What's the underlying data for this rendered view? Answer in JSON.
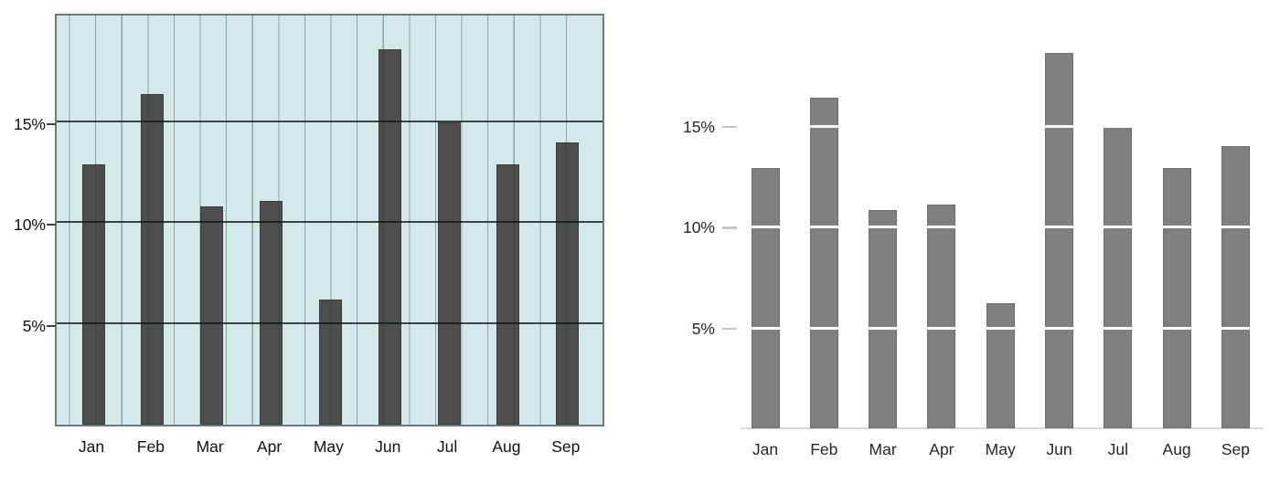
{
  "figure": {
    "background": "#ffffff",
    "description": "Side-by-side comparison of the same monthly percentage bar chart: left panel heavily gridded on tinted background, right panel minimal with white gridline gaps"
  },
  "chart_data": [
    {
      "id": "decorated",
      "panel": "left",
      "type": "bar",
      "title": "",
      "xlabel": "",
      "ylabel": "",
      "categories": [
        "Jan",
        "Feb",
        "Mar",
        "Apr",
        "May",
        "Jun",
        "Jul",
        "Aug",
        "Sep"
      ],
      "values": [
        12.9,
        16.4,
        10.8,
        11.1,
        6.2,
        18.6,
        15.0,
        12.9,
        14.0
      ],
      "value_unit": "%",
      "ylim": [
        0,
        20.4
      ],
      "y_ticks": [
        {
          "value": 5,
          "label": "5%"
        },
        {
          "value": 10,
          "label": "10%"
        },
        {
          "value": 15,
          "label": "15%"
        }
      ],
      "legend": "none",
      "grid": {
        "horizontal": true,
        "vertical": true,
        "drawn_over_bars": true
      },
      "colors": {
        "plot_background": "#d3e8e9",
        "bar": "#4e4e4e",
        "bar_outline": "#3b3b3b",
        "plot_border": "#6b7a7c",
        "horizontal_grid": "rgba(15,22,23,0.78)",
        "vertical_grid": "rgba(25,55,60,0.38)",
        "axis_tick": "#3c4446",
        "label_text": "#111111"
      }
    },
    {
      "id": "minimal",
      "panel": "right",
      "type": "bar",
      "title": "",
      "xlabel": "",
      "ylabel": "",
      "categories": [
        "Jan",
        "Feb",
        "Mar",
        "Apr",
        "May",
        "Jun",
        "Jul",
        "Aug",
        "Sep"
      ],
      "values": [
        12.9,
        16.4,
        10.8,
        11.1,
        6.2,
        18.6,
        15.0,
        12.9,
        14.0
      ],
      "value_unit": "%",
      "ylim": [
        0,
        20.4
      ],
      "y_ticks": [
        {
          "value": 5,
          "label": "5%"
        },
        {
          "value": 10,
          "label": "10%"
        },
        {
          "value": 15,
          "label": "15%"
        }
      ],
      "legend": "none",
      "grid": {
        "horizontal": "white gaps visible only across bars",
        "vertical": false
      },
      "colors": {
        "bar": "#7f7f7f",
        "grid_gap": "#ffffff",
        "baseline": "#d7d7d7",
        "axis_tick": "#c6c6c6",
        "label_text": "#262626"
      }
    }
  ]
}
